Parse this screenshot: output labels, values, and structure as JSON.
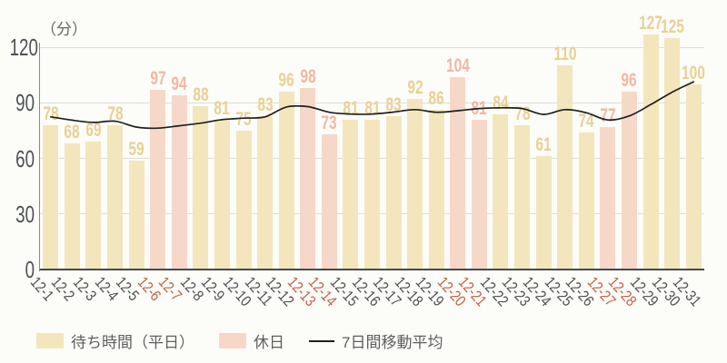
{
  "chart_data": {
    "type": "bar",
    "title": "",
    "unit_label": "（分）",
    "x_tick_labels": [
      "12-1",
      "12-2",
      "12-3",
      "12-4",
      "12-5",
      "12-6",
      "12-7",
      "12-8",
      "12-9",
      "12-10",
      "12-11",
      "12-12",
      "12-13",
      "12-14",
      "12-15",
      "12-16",
      "12-17",
      "12-18",
      "12-19",
      "12-20",
      "12-21",
      "12-22",
      "12-23",
      "12-24",
      "12-25",
      "12-26",
      "12-27",
      "12-28",
      "12-29",
      "12-30",
      "12-31"
    ],
    "values": [
      78,
      68,
      69,
      78,
      59,
      97,
      94,
      88,
      81,
      75,
      83,
      96,
      98,
      73,
      81,
      81,
      83,
      92,
      86,
      104,
      81,
      84,
      78,
      61,
      110,
      74,
      77,
      96,
      127,
      125,
      100
    ],
    "moving_average": [
      82.4,
      80.6,
      79.4,
      80.1,
      76.9,
      76.3,
      77.6,
      79.0,
      80.9,
      81.7,
      82.4,
      87.7,
      87.9,
      84.9,
      83.9,
      83.9,
      85.0,
      86.3,
      84.9,
      85.7,
      86.9,
      87.3,
      86.9,
      83.7,
      86.3,
      84.6,
      80.7,
      82.9,
      89.0,
      95.7,
      101.3
    ],
    "holidays": [
      "12-6",
      "12-7",
      "12-13",
      "12-14",
      "12-20",
      "12-21",
      "12-27",
      "12-28"
    ],
    "y_ticks": [
      0,
      30,
      60,
      90,
      120
    ],
    "y_max": 120,
    "grid": true,
    "legend": [
      {
        "label": "待ち時間（平日）",
        "swatch": "weekday"
      },
      {
        "label": "休日",
        "swatch": "holiday"
      },
      {
        "label": "7日間移動平均",
        "swatch": "line"
      }
    ],
    "colors": {
      "background": "#fcfcf9",
      "bar_weekday": "#f3e6bc",
      "bar_holiday": "#f6d8c8",
      "bar_label_weekday": "#e9d194",
      "bar_label_holiday": "#f1b8a2",
      "tick_weekday": "#4d5154",
      "tick_holiday": "#c26247",
      "grid": "#dcdcdc",
      "axis_bottom": "#47484a",
      "axis_left": "#8a8a8a",
      "ma_line": "#1f1f1f",
      "legend_text": "#5e5e5e",
      "unit_text": "#666666"
    }
  }
}
